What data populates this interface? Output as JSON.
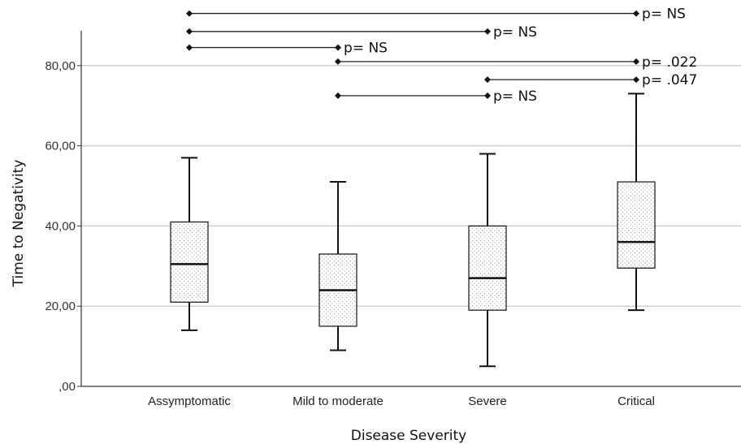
{
  "chart_data": {
    "type": "boxplot",
    "xlabel": "Disease Severity",
    "ylabel": "Time to Negativity",
    "ylim": [
      0,
      90
    ],
    "yticks": [
      0,
      20,
      40,
      60,
      80
    ],
    "ytick_labels": [
      ",00",
      "20,00",
      "40,00",
      "60,00",
      "80,00"
    ],
    "grid": true,
    "categories": [
      "Assymptomatic",
      "Mild to moderate",
      "Severe",
      "Critical"
    ],
    "boxes": [
      {
        "category": "Assymptomatic",
        "min": 14,
        "q1": 21,
        "median": 30.5,
        "q3": 41,
        "max": 57
      },
      {
        "category": "Mild to moderate",
        "min": 9,
        "q1": 15,
        "median": 24,
        "q3": 33,
        "max": 51
      },
      {
        "category": "Severe",
        "min": 5,
        "q1": 19,
        "median": 27,
        "q3": 40,
        "max": 58
      },
      {
        "category": "Critical",
        "min": 19,
        "q1": 29.5,
        "median": 36,
        "q3": 51,
        "max": 73
      }
    ],
    "comparisons": [
      {
        "from": "Assymptomatic",
        "to": "Critical",
        "y": 93,
        "label": "p= NS"
      },
      {
        "from": "Assymptomatic",
        "to": "Severe",
        "y": 88.5,
        "label": "p= NS"
      },
      {
        "from": "Assymptomatic",
        "to": "Mild to moderate",
        "y": 84.5,
        "label": "p= NS"
      },
      {
        "from": "Mild to moderate",
        "to": "Critical",
        "y": 81,
        "label": "p= .022"
      },
      {
        "from": "Severe",
        "to": "Critical",
        "y": 76.5,
        "label": "p= .047"
      },
      {
        "from": "Mild to moderate",
        "to": "Severe",
        "y": 72.5,
        "label": "p= NS"
      }
    ]
  }
}
